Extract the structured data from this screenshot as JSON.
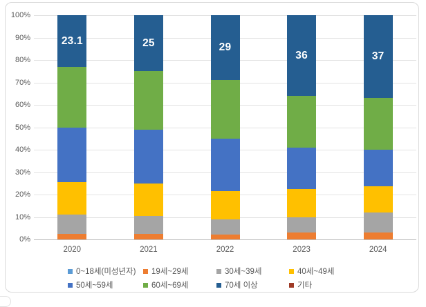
{
  "chart_data": {
    "type": "bar",
    "subtype": "stacked-100-column",
    "title": "",
    "categories": [
      "2020",
      "2021",
      "2022",
      "2023",
      "2024"
    ],
    "series": [
      {
        "name": "0~18세(미성년자)",
        "color": "#5B9BD5",
        "values": [
          0,
          0,
          0,
          0,
          0
        ]
      },
      {
        "name": "19세~29세",
        "color": "#ED7D31",
        "values": [
          2.4,
          2.6,
          2.3,
          3,
          3
        ]
      },
      {
        "name": "30세~39세",
        "color": "#A5A5A5",
        "values": [
          8.6,
          7.9,
          6.7,
          7,
          9
        ]
      },
      {
        "name": "40세~49세",
        "color": "#FFC000",
        "values": [
          14.5,
          14.5,
          12.5,
          12.5,
          11.7
        ]
      },
      {
        "name": "50세~59세",
        "color": "#4472C4",
        "values": [
          24.5,
          24,
          23.5,
          18.5,
          16.3
        ]
      },
      {
        "name": "60세~69세",
        "color": "#70AD47",
        "values": [
          26.9,
          26,
          26,
          23,
          23
        ]
      },
      {
        "name": "70세 이상",
        "color": "#255E91",
        "values": [
          23.1,
          25,
          29,
          36,
          37
        ],
        "data_labels": [
          "23.1",
          "25",
          "29",
          "36",
          "37"
        ]
      },
      {
        "name": "기타",
        "color": "#9E3A26",
        "values": [
          0,
          0,
          0,
          0,
          0
        ]
      }
    ],
    "y_ticks": [
      "0%",
      "10%",
      "20%",
      "30%",
      "40%",
      "50%",
      "60%",
      "70%",
      "80%",
      "90%",
      "100%"
    ],
    "ylim": [
      0,
      100
    ],
    "xlabel": "",
    "ylabel": "",
    "grid": true,
    "legend_position": "bottom",
    "legend_rows": 2,
    "colors": {
      "tick_label": "#595959",
      "gridline": "#E2E2E2",
      "axis_line": "#BFBFBF",
      "data_label": "#FFFFFF",
      "card_border": "#D9D9D9",
      "background": "#FFFFFF"
    }
  }
}
